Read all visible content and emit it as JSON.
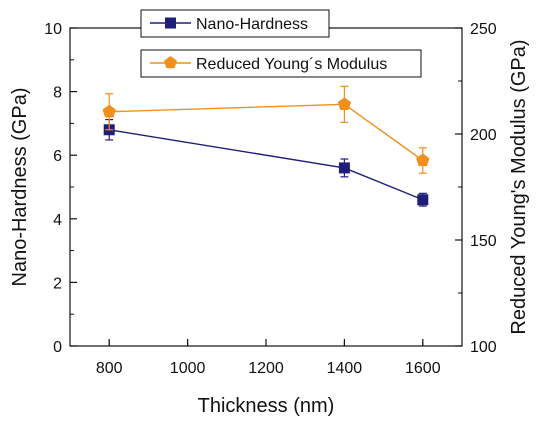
{
  "chart_data": {
    "type": "line",
    "title": "",
    "xlabel": "Thickness (nm)",
    "ylabel_left": "Nano-Hardness (GPa)",
    "ylabel_right": "Reduced Young's Modulus (GPa)",
    "xlim": [
      700,
      1700
    ],
    "ylim_left": [
      0,
      10
    ],
    "ylim_right": [
      100,
      250
    ],
    "x_ticks": [
      800,
      1000,
      1200,
      1400,
      1600
    ],
    "y_left_ticks": [
      0,
      2,
      4,
      6,
      8,
      10
    ],
    "y_right_ticks": [
      100,
      150,
      200,
      250
    ],
    "grid": false,
    "legend_placement": "top-center",
    "series": [
      {
        "name": "Nano-Hardness",
        "axis": "left",
        "color": "#1f1f7a",
        "marker": "square",
        "x": [
          800,
          1400,
          1600
        ],
        "y": [
          6.8,
          5.6,
          4.6
        ],
        "err": [
          0.32,
          0.28,
          0.2
        ]
      },
      {
        "name": "Reduced Young´s Modulus",
        "axis": "right",
        "color": "#f28e1c",
        "marker": "pentagon",
        "x": [
          800,
          1400,
          1600
        ],
        "y": [
          210.5,
          214,
          187.5
        ],
        "err": [
          8.5,
          8.5,
          6
        ]
      }
    ]
  }
}
